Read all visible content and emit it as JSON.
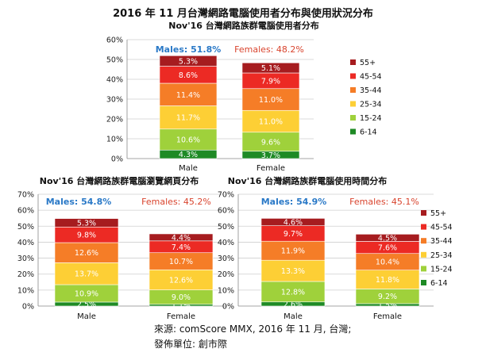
{
  "page_title": "2016 年 11 月台灣網路電腦使用者分布與使用狀況分布",
  "colors": {
    "6-14": "#1e8a25",
    "15-24": "#9fd13b",
    "25-34": "#fdcf35",
    "35-44": "#f57d27",
    "45-54": "#ec2a24",
    "55+": "#a61c1f",
    "male_label": "#2a79c7",
    "female_label": "#d9442e"
  },
  "chart_data": [
    {
      "type": "bar",
      "stacked": true,
      "title": "Nov'16 台灣網路族群電腦使用者分布",
      "categories": [
        "Male",
        "Female"
      ],
      "ylim": [
        0,
        60
      ],
      "yticks": [
        "0%",
        "10%",
        "20%",
        "30%",
        "40%",
        "50%",
        "60%"
      ],
      "grid": true,
      "legend_position": "right",
      "legend": [
        "55+",
        "45-54",
        "35-44",
        "25-34",
        "15-24",
        "6-14"
      ],
      "group_labels": [
        "Males: 51.8%",
        "Females: 48.2%"
      ],
      "series": [
        {
          "name": "6-14",
          "values": [
            4.3,
            3.7
          ],
          "labels": [
            "4.3%",
            "3.7%"
          ]
        },
        {
          "name": "15-24",
          "values": [
            10.6,
            9.6
          ],
          "labels": [
            "10.6%",
            "9.6%"
          ]
        },
        {
          "name": "25-34",
          "values": [
            11.7,
            11.0
          ],
          "labels": [
            "11.7%",
            "11.0%"
          ]
        },
        {
          "name": "35-44",
          "values": [
            11.4,
            11.0
          ],
          "labels": [
            "11.4%",
            "11.0%"
          ]
        },
        {
          "name": "45-54",
          "values": [
            8.6,
            7.9
          ],
          "labels": [
            "8.6%",
            "7.9%"
          ]
        },
        {
          "name": "55+",
          "values": [
            5.3,
            5.1
          ],
          "labels": [
            "5.3%",
            "5.1%"
          ]
        }
      ]
    },
    {
      "type": "bar",
      "stacked": true,
      "title": "Nov'16 台灣網路族群電腦瀏覽網頁分布",
      "categories": [
        "Male",
        "Female"
      ],
      "ylim": [
        0,
        70
      ],
      "yticks": [
        "0%",
        "10%",
        "20%",
        "30%",
        "40%",
        "50%",
        "60%",
        "70%"
      ],
      "grid": true,
      "group_labels": [
        "Males: 54.8%",
        "Females: 45.2%"
      ],
      "series": [
        {
          "name": "6-14",
          "values": [
            2.5,
            1.1
          ],
          "labels": [
            "2.5%",
            "1.1%"
          ]
        },
        {
          "name": "15-24",
          "values": [
            10.9,
            9.0
          ],
          "labels": [
            "10.9%",
            "9.0%"
          ]
        },
        {
          "name": "25-34",
          "values": [
            13.7,
            12.6
          ],
          "labels": [
            "13.7%",
            "12.6%"
          ]
        },
        {
          "name": "35-44",
          "values": [
            12.6,
            10.7
          ],
          "labels": [
            "12.6%",
            "10.7%"
          ]
        },
        {
          "name": "45-54",
          "values": [
            9.8,
            7.4
          ],
          "labels": [
            "9.8%",
            "7.4%"
          ]
        },
        {
          "name": "55+",
          "values": [
            5.3,
            4.4
          ],
          "labels": [
            "5.3%",
            "4.4%"
          ]
        }
      ]
    },
    {
      "type": "bar",
      "stacked": true,
      "title": "Nov'16 台灣網路族群電腦使用時間分布",
      "categories": [
        "Male",
        "Female"
      ],
      "ylim": [
        0,
        70
      ],
      "yticks": [
        "0%",
        "10%",
        "20%",
        "30%",
        "40%",
        "50%",
        "60%",
        "70%"
      ],
      "grid": true,
      "legend_position": "right",
      "legend": [
        "55+",
        "45-54",
        "35-44",
        "25-34",
        "15-24",
        "6-14"
      ],
      "group_labels": [
        "Males: 54.9%",
        "Females: 45.1%"
      ],
      "series": [
        {
          "name": "6-14",
          "values": [
            2.6,
            1.5
          ],
          "labels": [
            "2.6%",
            "1.5%"
          ]
        },
        {
          "name": "15-24",
          "values": [
            12.8,
            9.2
          ],
          "labels": [
            "12.8%",
            "9.2%"
          ]
        },
        {
          "name": "25-34",
          "values": [
            13.3,
            11.8
          ],
          "labels": [
            "13.3%",
            "11.8%"
          ]
        },
        {
          "name": "35-44",
          "values": [
            11.9,
            10.4
          ],
          "labels": [
            "11.9%",
            "10.4%"
          ]
        },
        {
          "name": "45-54",
          "values": [
            9.7,
            7.6
          ],
          "labels": [
            "9.7%",
            "7.6%"
          ]
        },
        {
          "name": "55+",
          "values": [
            4.6,
            4.5
          ],
          "labels": [
            "4.6%",
            "4.5%"
          ]
        }
      ]
    }
  ],
  "source_lines": [
    "來源: comScore MMX, 2016 年 11 月, 台灣;",
    "發佈單位: 創市際"
  ]
}
